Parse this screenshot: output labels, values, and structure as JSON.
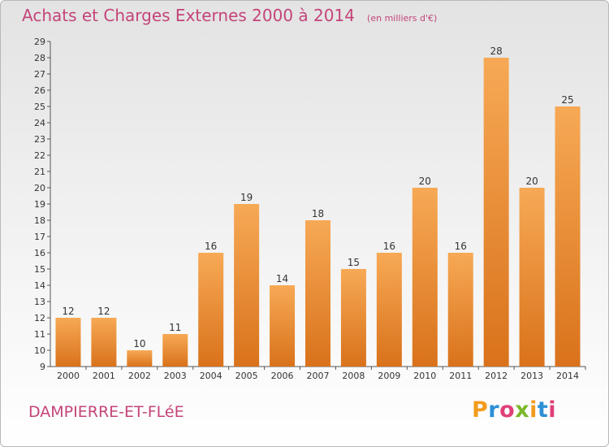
{
  "title": "Achats et Charges Externes 2000 à 2014",
  "subtitle": "(en milliers d'€)",
  "commune": "DAMPIERRE-ET-FLéE",
  "logo": {
    "letters": [
      "P",
      "r",
      "o",
      "x",
      "i",
      "t",
      "i"
    ],
    "colors": [
      "#f29b1d",
      "#2b8fd6",
      "#e0407a",
      "#7ab829",
      "#f29b1d",
      "#2b8fd6",
      "#e0407a"
    ]
  },
  "colors": {
    "bar_top": "#f7a955",
    "bar_bottom": "#d9721b",
    "title": "#c4447a"
  },
  "chart_data": {
    "type": "bar",
    "categories": [
      "2000",
      "2001",
      "2002",
      "2003",
      "2004",
      "2005",
      "2006",
      "2007",
      "2008",
      "2009",
      "2010",
      "2011",
      "2012",
      "2013",
      "2014"
    ],
    "values": [
      12,
      12,
      10,
      11,
      16,
      19,
      14,
      18,
      15,
      16,
      20,
      16,
      28,
      20,
      25
    ],
    "ylim": [
      9,
      29
    ],
    "yticks": [
      "9",
      "10",
      "11",
      "12",
      "13",
      "14",
      "15",
      "16",
      "17",
      "18",
      "19",
      "20",
      "21",
      "22",
      "23",
      "24",
      "25",
      "26",
      "27",
      "28",
      "29"
    ],
    "grid": false,
    "legend": "none"
  }
}
